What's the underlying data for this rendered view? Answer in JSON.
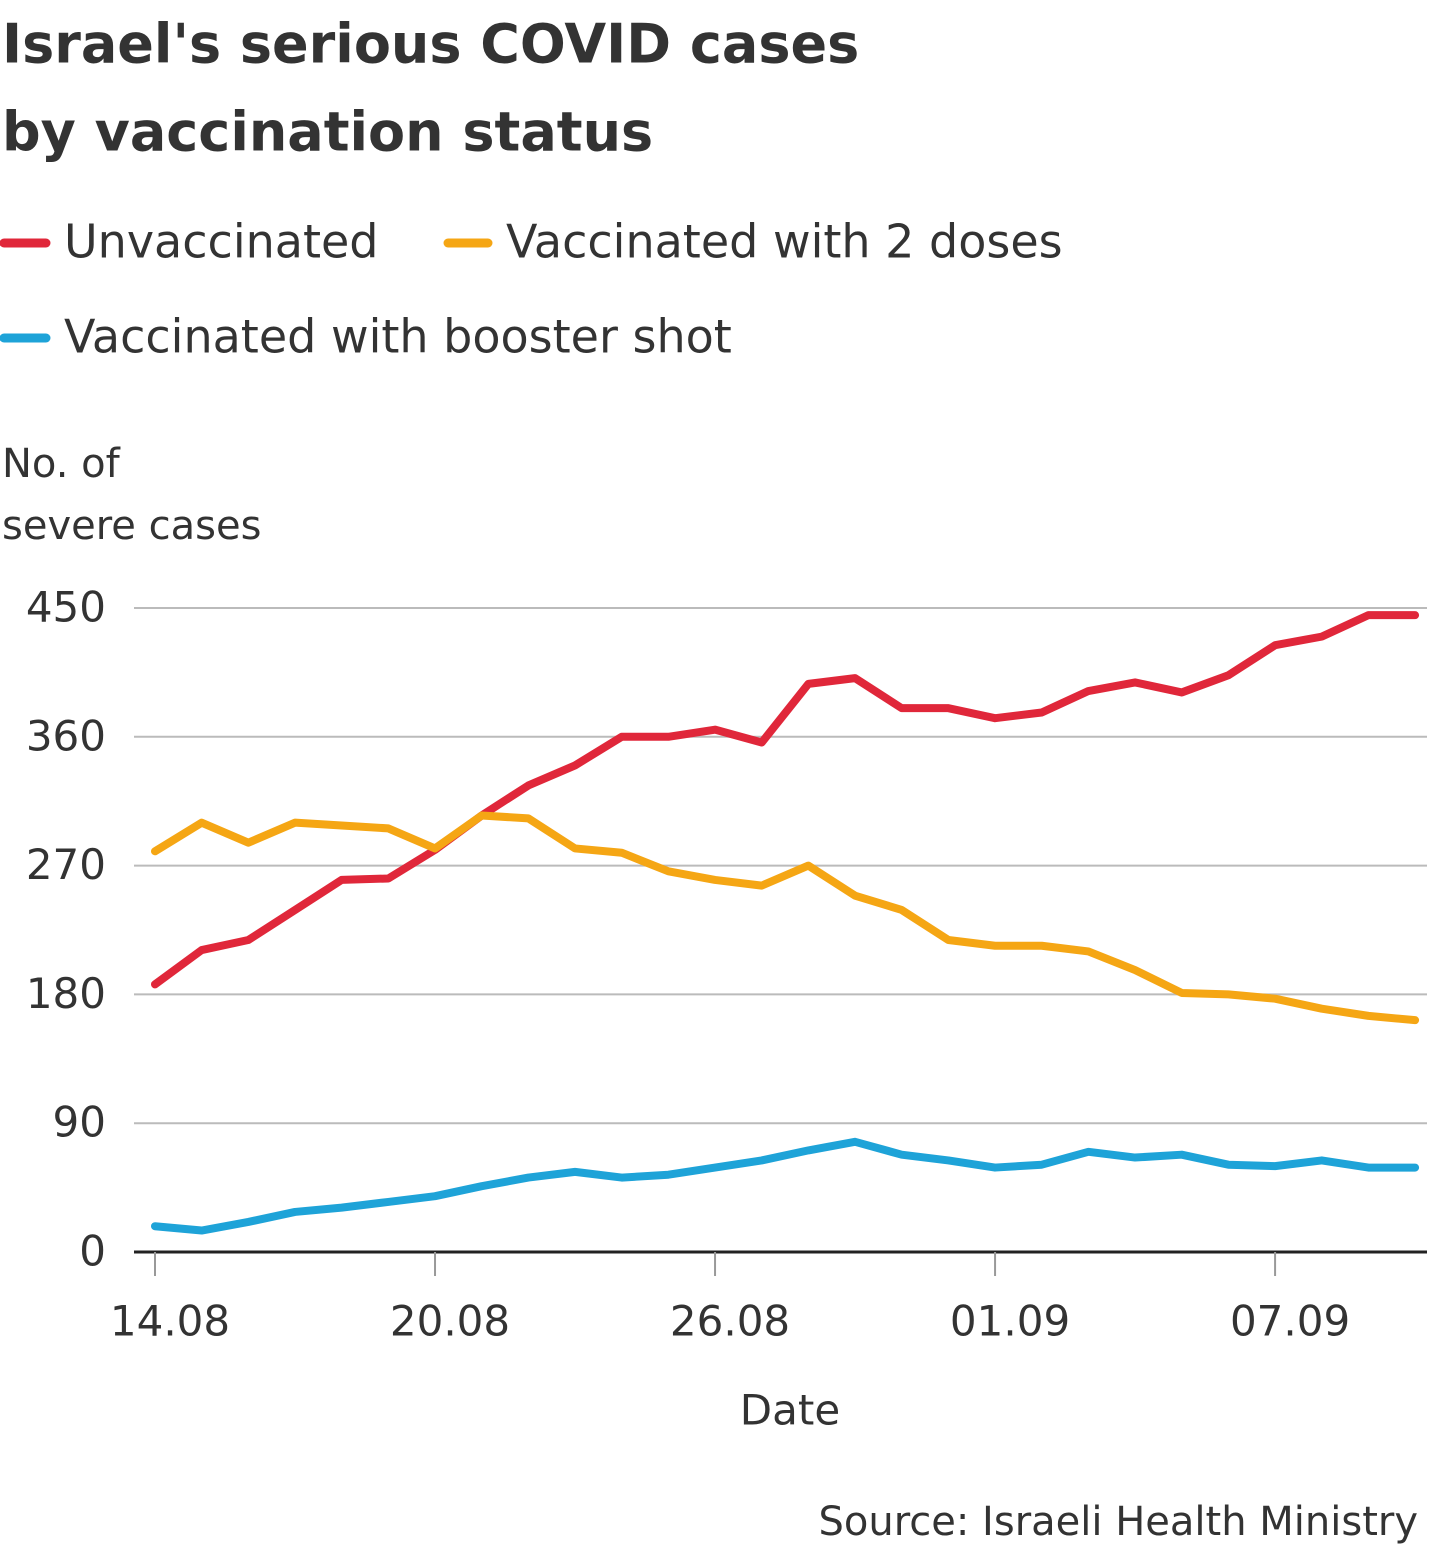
{
  "chart_data": {
    "type": "line",
    "title": [
      "Israel's serious COVID cases",
      "by vaccination status"
    ],
    "y_label": [
      "No. of",
      "severe cases"
    ],
    "x_label": "Date",
    "source": "Source: Israeli Health Ministry",
    "categories": [
      "14.08",
      null,
      null,
      null,
      null,
      null,
      "20.08",
      null,
      null,
      null,
      null,
      null,
      "26.08",
      null,
      null,
      null,
      null,
      null,
      "01.09",
      null,
      null,
      null,
      null,
      null,
      "07.09",
      null,
      null,
      null
    ],
    "series": [
      {
        "name": "Unvaccinated",
        "color": "#e0273a",
        "values": [
          187,
          211,
          218,
          239,
          260,
          261,
          281,
          305,
          326,
          340,
          360,
          360,
          365,
          356,
          397,
          401,
          380,
          380,
          373,
          377,
          392,
          398,
          391,
          403,
          424,
          430,
          445,
          445
        ]
      },
      {
        "name": "Vaccinated with 2 doses",
        "color": "#f5a614",
        "values": [
          280,
          300,
          286,
          300,
          298,
          296,
          282,
          305,
          303,
          282,
          279,
          266,
          260,
          256,
          270,
          249,
          239,
          218,
          214,
          214,
          210,
          197,
          181,
          180,
          177,
          170,
          165,
          162
        ]
      },
      {
        "name": "Vaccinated with booster shot",
        "color": "#1ea3d8",
        "values": [
          18,
          15,
          21,
          28,
          31,
          35,
          39,
          46,
          52,
          56,
          52,
          54,
          59,
          64,
          71,
          77,
          68,
          64,
          59,
          61,
          70,
          66,
          68,
          61,
          60,
          64,
          59,
          59
        ]
      }
    ],
    "ylim": [
      0,
      450
    ],
    "yticks": [
      0,
      90,
      180,
      270,
      360,
      450
    ],
    "grid": true
  }
}
